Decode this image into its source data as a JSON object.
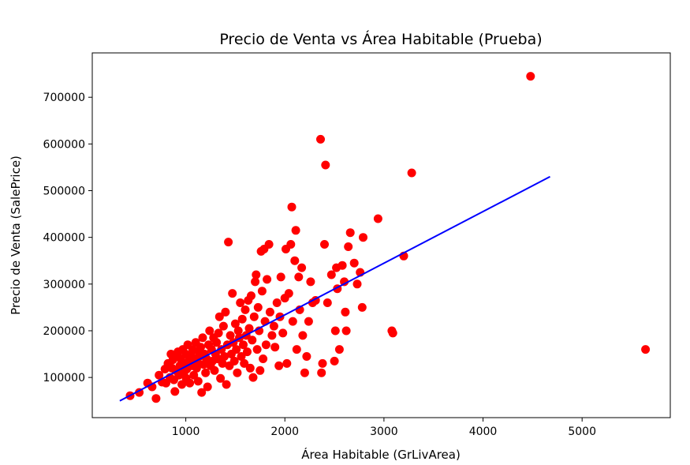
{
  "chart_data": {
    "type": "scatter",
    "title": "Precio de Venta vs Área Habitable (Prueba)",
    "xlabel": "Área Habitable (GrLivArea)",
    "ylabel": "Precio de Venta (SalePrice)",
    "xlim": [
      56,
      5890
    ],
    "ylim": [
      14000,
      795000
    ],
    "xticks": [
      1000,
      2000,
      3000,
      4000,
      5000
    ],
    "yticks": [
      100000,
      200000,
      300000,
      400000,
      500000,
      600000,
      700000
    ],
    "grid": false,
    "colors": {
      "points": "#ff0000",
      "line": "#0000ff"
    },
    "series": [
      {
        "type": "scatter",
        "points": [
          [
            438,
            61000
          ],
          [
            530,
            68000
          ],
          [
            615,
            88000
          ],
          [
            660,
            80000
          ],
          [
            700,
            55000
          ],
          [
            730,
            105000
          ],
          [
            760,
            90000
          ],
          [
            790,
            118000
          ],
          [
            800,
            88000
          ],
          [
            820,
            130000
          ],
          [
            840,
            100000
          ],
          [
            850,
            150000
          ],
          [
            860,
            120000
          ],
          [
            870,
            138000
          ],
          [
            880,
            95000
          ],
          [
            890,
            70000
          ],
          [
            900,
            115000
          ],
          [
            910,
            145000
          ],
          [
            920,
            155000
          ],
          [
            930,
            105000
          ],
          [
            940,
            125000
          ],
          [
            950,
            140000
          ],
          [
            960,
            85000
          ],
          [
            970,
            160000
          ],
          [
            980,
            110000
          ],
          [
            990,
            130000
          ],
          [
            1000,
            150000
          ],
          [
            1005,
            98000
          ],
          [
            1010,
            118000
          ],
          [
            1020,
            170000
          ],
          [
            1030,
            135000
          ],
          [
            1040,
            88000
          ],
          [
            1050,
            148000
          ],
          [
            1060,
            125000
          ],
          [
            1070,
            160000
          ],
          [
            1080,
            105000
          ],
          [
            1090,
            140000
          ],
          [
            1100,
            175000
          ],
          [
            1110,
            120000
          ],
          [
            1120,
            130000
          ],
          [
            1125,
            92000
          ],
          [
            1130,
            155000
          ],
          [
            1140,
            145000
          ],
          [
            1150,
            165000
          ],
          [
            1160,
            68000
          ],
          [
            1170,
            185000
          ],
          [
            1180,
            128000
          ],
          [
            1190,
            150000
          ],
          [
            1200,
            110000
          ],
          [
            1210,
            140000
          ],
          [
            1220,
            80000
          ],
          [
            1230,
            170000
          ],
          [
            1240,
            200000
          ],
          [
            1250,
            125000
          ],
          [
            1260,
            160000
          ],
          [
            1270,
            135000
          ],
          [
            1280,
            185000
          ],
          [
            1290,
            115000
          ],
          [
            1300,
            150000
          ],
          [
            1310,
            175000
          ],
          [
            1320,
            140000
          ],
          [
            1330,
            195000
          ],
          [
            1340,
            230000
          ],
          [
            1350,
            98000
          ],
          [
            1360,
            160000
          ],
          [
            1370,
            130000
          ],
          [
            1380,
            210000
          ],
          [
            1390,
            145000
          ],
          [
            1400,
            240000
          ],
          [
            1410,
            85000
          ],
          [
            1420,
            170000
          ],
          [
            1430,
            390000
          ],
          [
            1440,
            125000
          ],
          [
            1450,
            190000
          ],
          [
            1460,
            150000
          ],
          [
            1470,
            280000
          ],
          [
            1480,
            175000
          ],
          [
            1490,
            135000
          ],
          [
            1500,
            215000
          ],
          [
            1510,
            160000
          ],
          [
            1520,
            110000
          ],
          [
            1530,
            200000
          ],
          [
            1540,
            185000
          ],
          [
            1550,
            260000
          ],
          [
            1560,
            145000
          ],
          [
            1570,
            225000
          ],
          [
            1580,
            170000
          ],
          [
            1590,
            130000
          ],
          [
            1600,
            245000
          ],
          [
            1610,
            190000
          ],
          [
            1620,
            155000
          ],
          [
            1630,
            265000
          ],
          [
            1640,
            205000
          ],
          [
            1650,
            120000
          ],
          [
            1660,
            275000
          ],
          [
            1670,
            180000
          ],
          [
            1680,
            100000
          ],
          [
            1690,
            230000
          ],
          [
            1700,
            305000
          ],
          [
            1710,
            320000
          ],
          [
            1720,
            160000
          ],
          [
            1730,
            250000
          ],
          [
            1740,
            200000
          ],
          [
            1750,
            115000
          ],
          [
            1760,
            370000
          ],
          [
            1770,
            285000
          ],
          [
            1780,
            140000
          ],
          [
            1790,
            375000
          ],
          [
            1800,
            220000
          ],
          [
            1810,
            170000
          ],
          [
            1820,
            310000
          ],
          [
            1840,
            385000
          ],
          [
            1850,
            240000
          ],
          [
            1870,
            190000
          ],
          [
            1890,
            210000
          ],
          [
            1900,
            165000
          ],
          [
            1920,
            260000
          ],
          [
            1940,
            125000
          ],
          [
            1950,
            230000
          ],
          [
            1960,
            315000
          ],
          [
            1980,
            195000
          ],
          [
            2000,
            270000
          ],
          [
            2010,
            375000
          ],
          [
            2020,
            130000
          ],
          [
            2040,
            280000
          ],
          [
            2060,
            385000
          ],
          [
            2070,
            465000
          ],
          [
            2080,
            220000
          ],
          [
            2100,
            350000
          ],
          [
            2110,
            415000
          ],
          [
            2120,
            160000
          ],
          [
            2140,
            315000
          ],
          [
            2150,
            245000
          ],
          [
            2170,
            335000
          ],
          [
            2180,
            190000
          ],
          [
            2200,
            110000
          ],
          [
            2220,
            145000
          ],
          [
            2240,
            220000
          ],
          [
            2260,
            305000
          ],
          [
            2280,
            260000
          ],
          [
            2310,
            265000
          ],
          [
            2360,
            610000
          ],
          [
            2370,
            110000
          ],
          [
            2380,
            130000
          ],
          [
            2400,
            385000
          ],
          [
            2410,
            555000
          ],
          [
            2430,
            260000
          ],
          [
            2470,
            320000
          ],
          [
            2500,
            135000
          ],
          [
            2510,
            200000
          ],
          [
            2520,
            335000
          ],
          [
            2530,
            290000
          ],
          [
            2550,
            160000
          ],
          [
            2580,
            340000
          ],
          [
            2600,
            305000
          ],
          [
            2610,
            240000
          ],
          [
            2620,
            200000
          ],
          [
            2640,
            380000
          ],
          [
            2660,
            410000
          ],
          [
            2700,
            345000
          ],
          [
            2730,
            300000
          ],
          [
            2760,
            325000
          ],
          [
            2780,
            250000
          ],
          [
            2790,
            400000
          ],
          [
            2940,
            440000
          ],
          [
            3080,
            200000
          ],
          [
            3090,
            195000
          ],
          [
            3200,
            360000
          ],
          [
            3280,
            538000
          ],
          [
            4480,
            745000
          ],
          [
            5640,
            160000
          ]
        ]
      },
      {
        "type": "line",
        "points": [
          [
            334,
            50000
          ],
          [
            4676,
            530000
          ]
        ]
      }
    ]
  }
}
